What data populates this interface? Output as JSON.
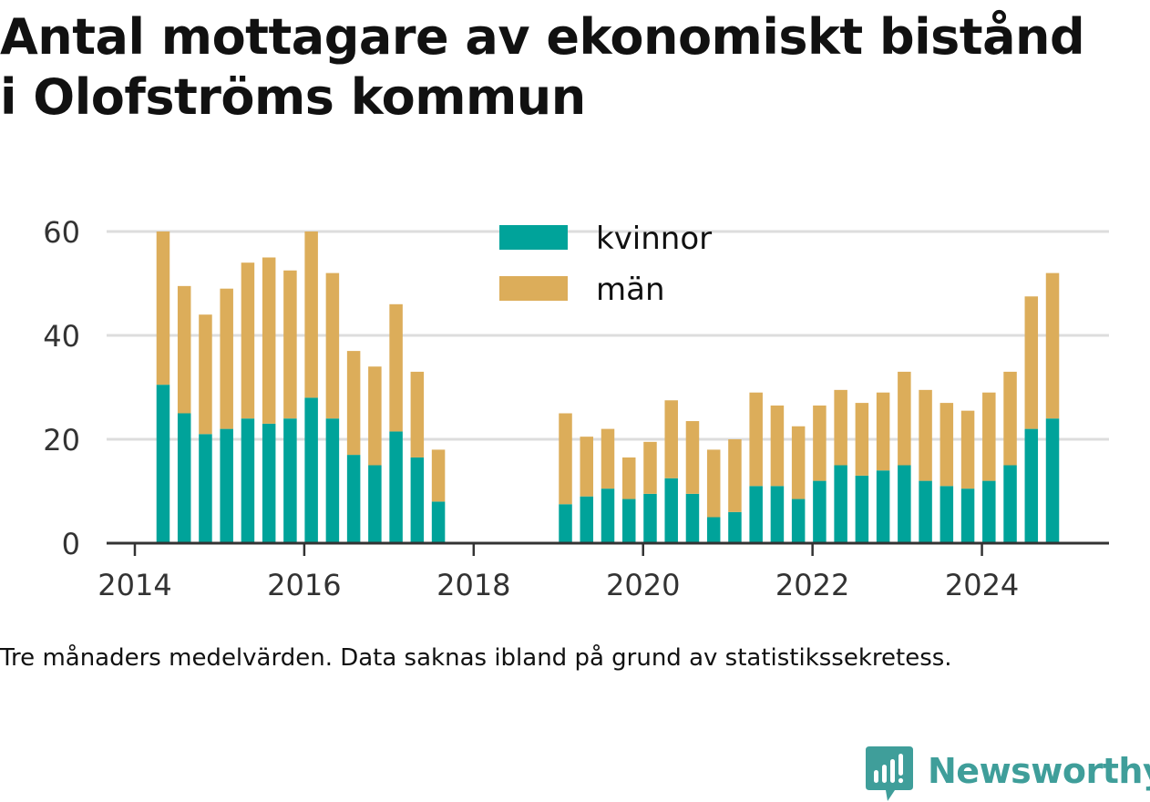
{
  "title_line1": "Antal mottagare av ekonomiskt bistånd",
  "title_line2": "i Olofströms kommun",
  "caption": "Tre månaders medelvärden. Data saknas ibland på grund av statistikssekretess.",
  "brand": {
    "name": "Newsworthy",
    "icon": "newsworthy-logo-icon",
    "color": "#3f9e9a"
  },
  "colors": {
    "kvinnor": "#00a39a",
    "man": "#dcad5a",
    "grid": "#dddddd",
    "axis": "#333333",
    "tick_text": "#333333"
  },
  "chart_data": {
    "type": "bar",
    "stacked": true,
    "title": "Antal mottagare av ekonomiskt bistånd i Olofströms kommun",
    "xlabel": "",
    "ylabel": "",
    "ylim": [
      0,
      60
    ],
    "xlim": [
      "2013-09",
      "2025-07"
    ],
    "grid": true,
    "legend_position": "top-center",
    "y_ticks": [
      0,
      20,
      40,
      60
    ],
    "x_ticks": [
      "2014",
      "2016",
      "2018",
      "2020",
      "2022",
      "2024"
    ],
    "x_tick_values": [
      "2014-01",
      "2016-01",
      "2018-01",
      "2020-01",
      "2022-01",
      "2024-01"
    ],
    "series": [
      {
        "name": "kvinnor",
        "color": "#00a39a",
        "points": [
          {
            "x": "2014-05",
            "y": 30.5
          },
          {
            "x": "2014-08",
            "y": 25
          },
          {
            "x": "2014-11",
            "y": 21
          },
          {
            "x": "2015-02",
            "y": 22
          },
          {
            "x": "2015-05",
            "y": 24
          },
          {
            "x": "2015-08",
            "y": 23
          },
          {
            "x": "2015-11",
            "y": 24
          },
          {
            "x": "2016-02",
            "y": 28
          },
          {
            "x": "2016-05",
            "y": 24
          },
          {
            "x": "2016-08",
            "y": 17
          },
          {
            "x": "2016-11",
            "y": 15
          },
          {
            "x": "2017-02",
            "y": 21.5
          },
          {
            "x": "2017-05",
            "y": 16.5
          },
          {
            "x": "2017-08",
            "y": 8
          },
          {
            "x": "2019-02",
            "y": 7.5
          },
          {
            "x": "2019-05",
            "y": 9
          },
          {
            "x": "2019-08",
            "y": 10.5
          },
          {
            "x": "2019-11",
            "y": 8.5
          },
          {
            "x": "2020-02",
            "y": 9.5
          },
          {
            "x": "2020-05",
            "y": 12.5
          },
          {
            "x": "2020-08",
            "y": 9.5
          },
          {
            "x": "2020-11",
            "y": 5
          },
          {
            "x": "2021-02",
            "y": 6
          },
          {
            "x": "2021-05",
            "y": 11
          },
          {
            "x": "2021-08",
            "y": 11
          },
          {
            "x": "2021-11",
            "y": 8.5
          },
          {
            "x": "2022-02",
            "y": 12
          },
          {
            "x": "2022-05",
            "y": 15
          },
          {
            "x": "2022-08",
            "y": 13
          },
          {
            "x": "2022-11",
            "y": 14
          },
          {
            "x": "2023-02",
            "y": 15
          },
          {
            "x": "2023-05",
            "y": 12
          },
          {
            "x": "2023-08",
            "y": 11
          },
          {
            "x": "2023-11",
            "y": 10.5
          },
          {
            "x": "2024-02",
            "y": 12
          },
          {
            "x": "2024-05",
            "y": 15
          },
          {
            "x": "2024-08",
            "y": 22
          },
          {
            "x": "2024-11",
            "y": 24
          }
        ]
      },
      {
        "name": "män",
        "color": "#dcad5a",
        "points": [
          {
            "x": "2014-05",
            "y": 29.5
          },
          {
            "x": "2014-08",
            "y": 24.5
          },
          {
            "x": "2014-11",
            "y": 23
          },
          {
            "x": "2015-02",
            "y": 27
          },
          {
            "x": "2015-05",
            "y": 30
          },
          {
            "x": "2015-08",
            "y": 32
          },
          {
            "x": "2015-11",
            "y": 28.5
          },
          {
            "x": "2016-02",
            "y": 32
          },
          {
            "x": "2016-05",
            "y": 28
          },
          {
            "x": "2016-08",
            "y": 20
          },
          {
            "x": "2016-11",
            "y": 19
          },
          {
            "x": "2017-02",
            "y": 24.5
          },
          {
            "x": "2017-05",
            "y": 16.5
          },
          {
            "x": "2017-08",
            "y": 10
          },
          {
            "x": "2019-02",
            "y": 17.5
          },
          {
            "x": "2019-05",
            "y": 11.5
          },
          {
            "x": "2019-08",
            "y": 11.5
          },
          {
            "x": "2019-11",
            "y": 8
          },
          {
            "x": "2020-02",
            "y": 10
          },
          {
            "x": "2020-05",
            "y": 15
          },
          {
            "x": "2020-08",
            "y": 14
          },
          {
            "x": "2020-11",
            "y": 13
          },
          {
            "x": "2021-02",
            "y": 14
          },
          {
            "x": "2021-05",
            "y": 18
          },
          {
            "x": "2021-08",
            "y": 15.5
          },
          {
            "x": "2021-11",
            "y": 14
          },
          {
            "x": "2022-02",
            "y": 14.5
          },
          {
            "x": "2022-05",
            "y": 14.5
          },
          {
            "x": "2022-08",
            "y": 14
          },
          {
            "x": "2022-11",
            "y": 15
          },
          {
            "x": "2023-02",
            "y": 18
          },
          {
            "x": "2023-05",
            "y": 17.5
          },
          {
            "x": "2023-08",
            "y": 16
          },
          {
            "x": "2023-11",
            "y": 15
          },
          {
            "x": "2024-02",
            "y": 17
          },
          {
            "x": "2024-05",
            "y": 18
          },
          {
            "x": "2024-08",
            "y": 25.5
          },
          {
            "x": "2024-11",
            "y": 28
          }
        ]
      }
    ]
  }
}
